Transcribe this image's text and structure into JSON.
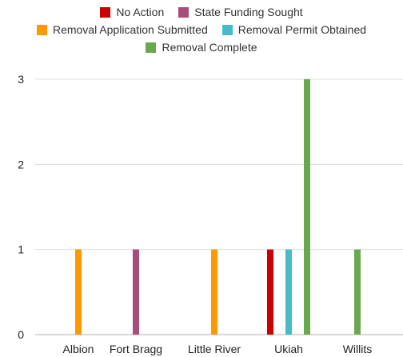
{
  "chart_data": {
    "type": "bar",
    "title": "",
    "xlabel": "",
    "ylabel": "",
    "categories": [
      "Albion",
      "Fort Bragg",
      "Little River",
      "Ukiah",
      "Willits"
    ],
    "series": [
      {
        "name": "No Action",
        "color": "#cc0000",
        "values": [
          0,
          0,
          0,
          1,
          0
        ]
      },
      {
        "name": "State Funding Sought",
        "color": "#a64d79",
        "values": [
          0,
          1,
          0,
          0,
          0
        ]
      },
      {
        "name": "Removal Application Submitted",
        "color": "#ff9900",
        "values": [
          1,
          0,
          1,
          0,
          0
        ]
      },
      {
        "name": "Removal Permit Obtained",
        "color": "#46bdc6",
        "values": [
          0,
          0,
          0,
          1,
          0
        ]
      },
      {
        "name": "Removal Complete",
        "color": "#6aa84f",
        "values": [
          0,
          0,
          0,
          3,
          1
        ]
      }
    ],
    "ylim": [
      0,
      3
    ],
    "yticks": [
      0,
      1,
      2,
      3
    ],
    "grid": true,
    "legend_position": "top"
  }
}
